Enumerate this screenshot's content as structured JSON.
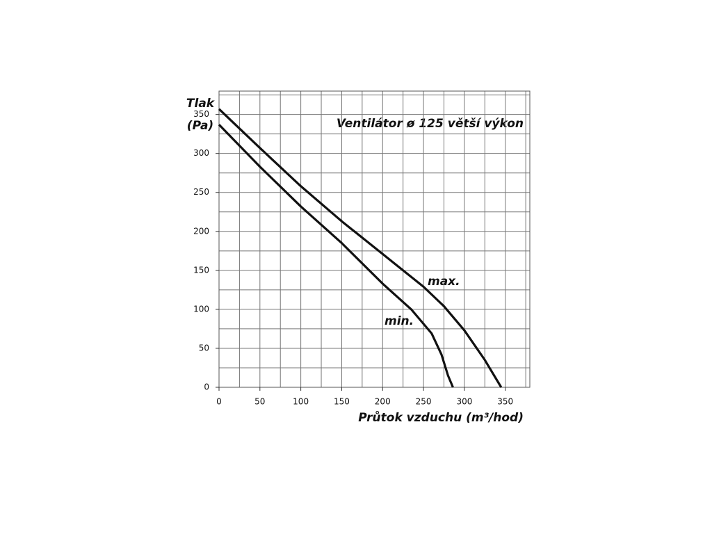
{
  "chart_data": {
    "type": "line",
    "title": "Ventilátor ø 125 větší výkon",
    "ylabel": [
      "Tlak",
      "(Pa)"
    ],
    "xlabel": "Průtok vzduchu (m³/hod)",
    "xlim": [
      0,
      380
    ],
    "ylim": [
      0,
      380
    ],
    "xticks": [
      0,
      50,
      100,
      150,
      200,
      250,
      300,
      350
    ],
    "yticks": [
      0,
      50,
      100,
      150,
      200,
      250,
      300,
      350
    ],
    "grid": true,
    "grid_step_x": 25,
    "grid_step_y": 25,
    "series": [
      {
        "name": "max.",
        "color": "#111111",
        "x": [
          0,
          50,
          100,
          150,
          200,
          250,
          275,
          300,
          325,
          345
        ],
        "values": [
          357,
          307,
          258,
          213,
          171,
          129,
          104,
          73,
          35,
          0
        ]
      },
      {
        "name": "min.",
        "color": "#111111",
        "x": [
          0,
          50,
          100,
          150,
          200,
          235,
          260,
          272,
          280,
          286
        ],
        "values": [
          337,
          283,
          232,
          185,
          133,
          100,
          69,
          42,
          15,
          0
        ]
      }
    ]
  }
}
